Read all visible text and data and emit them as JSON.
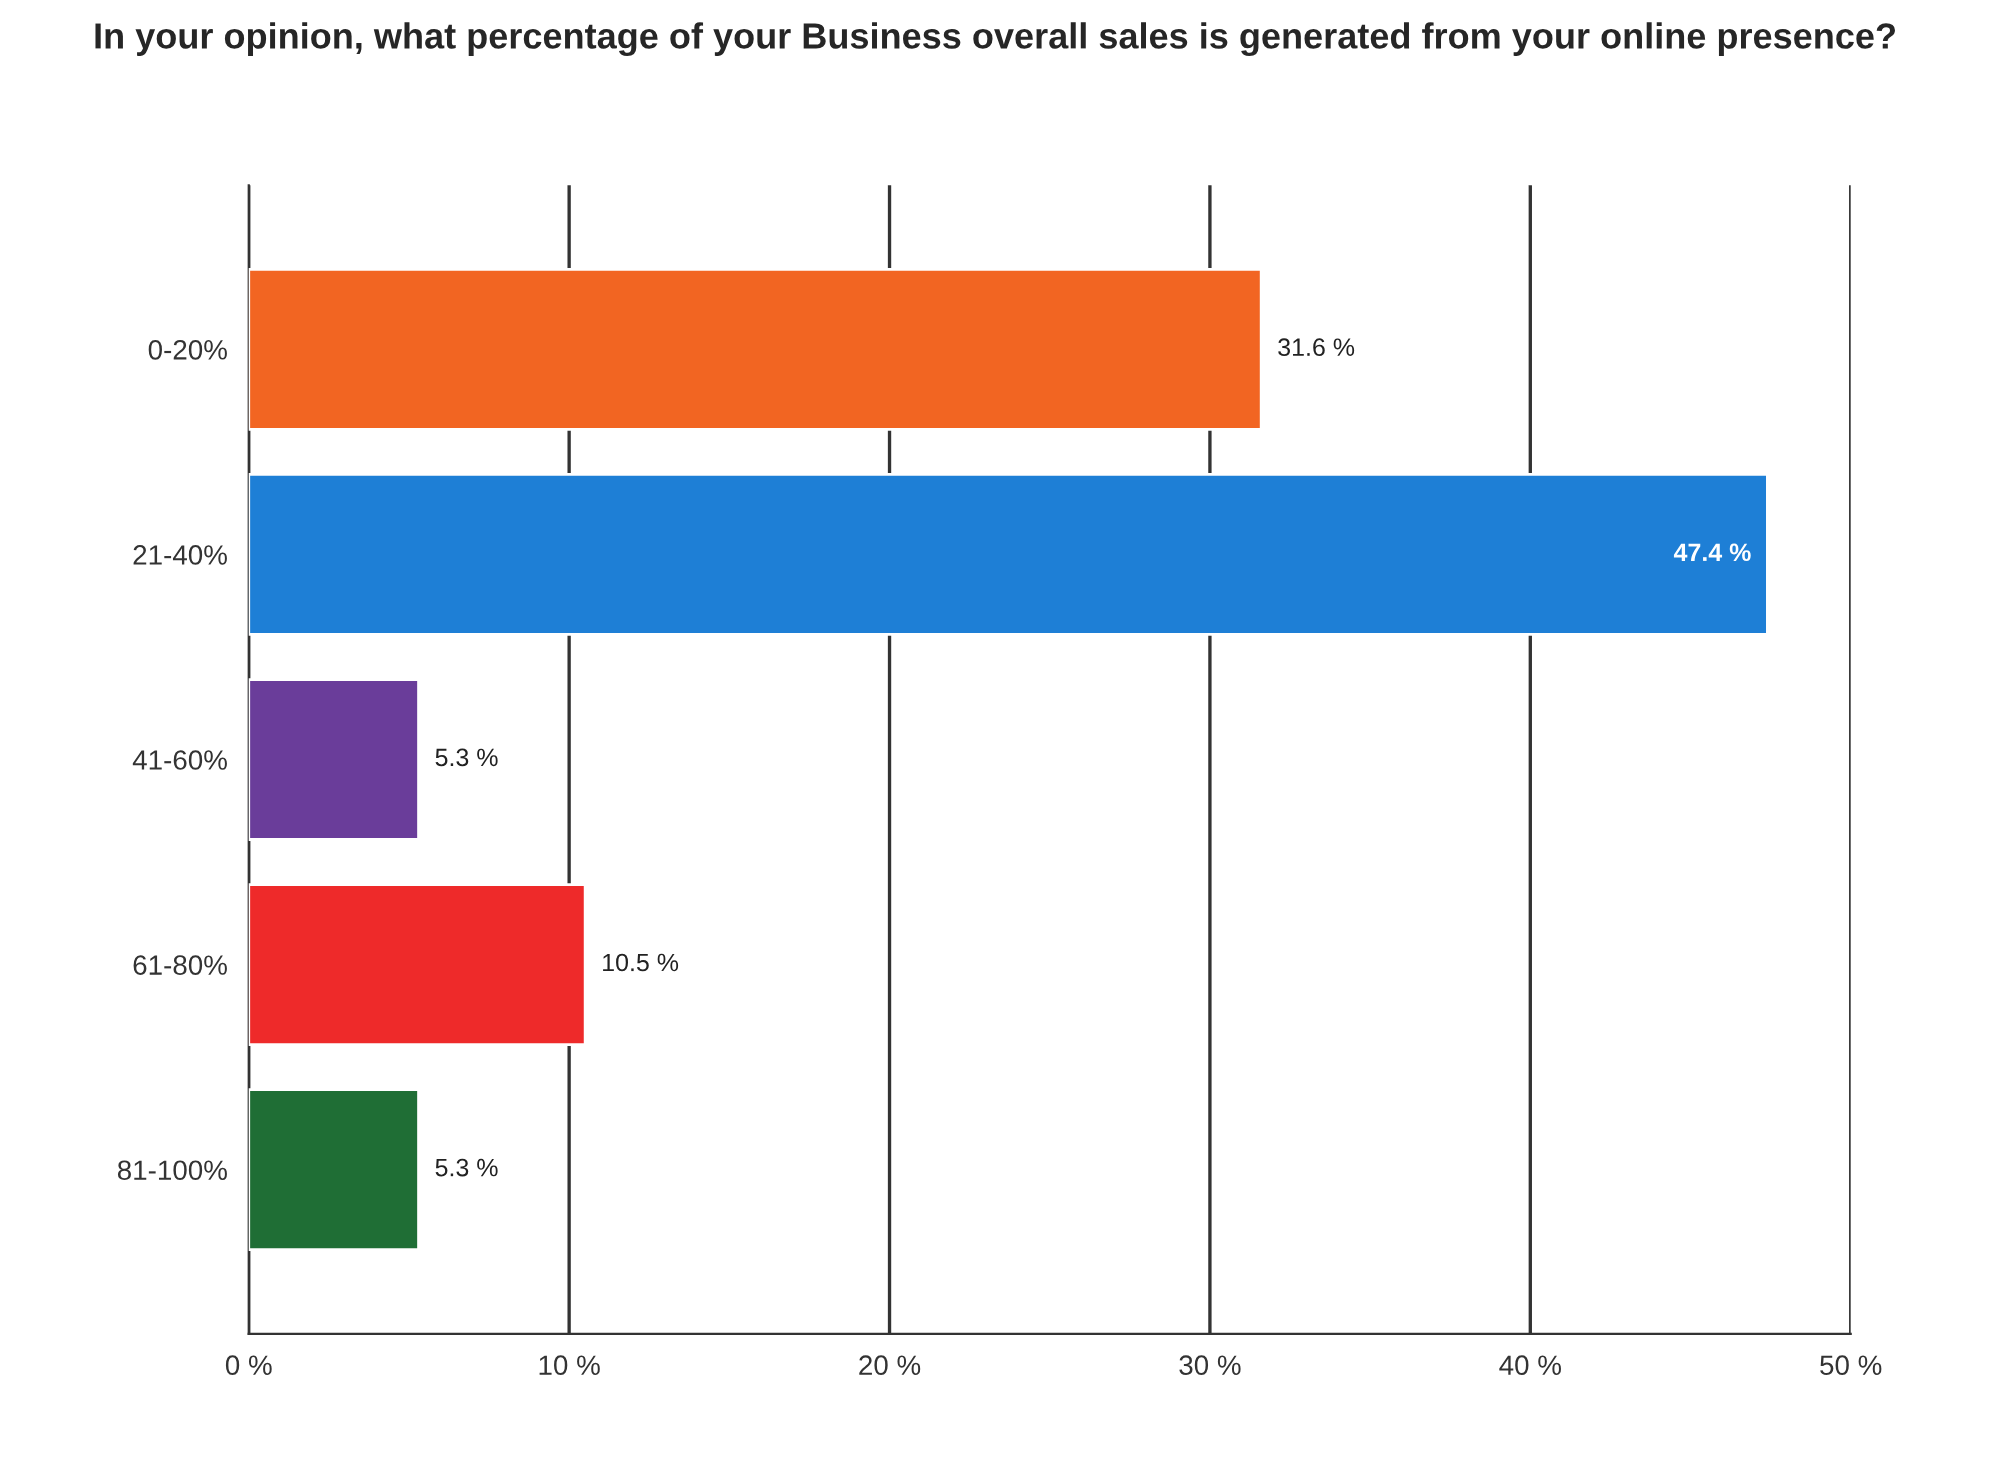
{
  "chart_data": {
    "type": "bar",
    "orientation": "horizontal",
    "title": "In your opinion, what percentage of your Business overall sales is generated from your online presence?",
    "categories": [
      "0-20%",
      "21-40%",
      "41-60%",
      "61-80%",
      "81-100%"
    ],
    "values": [
      31.6,
      47.4,
      5.3,
      10.5,
      5.3
    ],
    "colors": [
      "#f26522",
      "#1e7fd6",
      "#6a3d9a",
      "#ee2a2a",
      "#1f6e35"
    ],
    "value_labels": [
      "31.6 %",
      "47.4 %",
      "5.3 %",
      "10.5 %",
      "5.3 %"
    ],
    "xlim": [
      0,
      50
    ],
    "xticks": [
      {
        "value": 0,
        "label": "0 %"
      },
      {
        "value": 10,
        "label": "10 %"
      },
      {
        "value": 20,
        "label": "20 %"
      },
      {
        "value": 30,
        "label": "30 %"
      },
      {
        "value": 40,
        "label": "40 %"
      },
      {
        "value": 50,
        "label": "50 %"
      }
    ],
    "grid": "x",
    "legend": false
  }
}
